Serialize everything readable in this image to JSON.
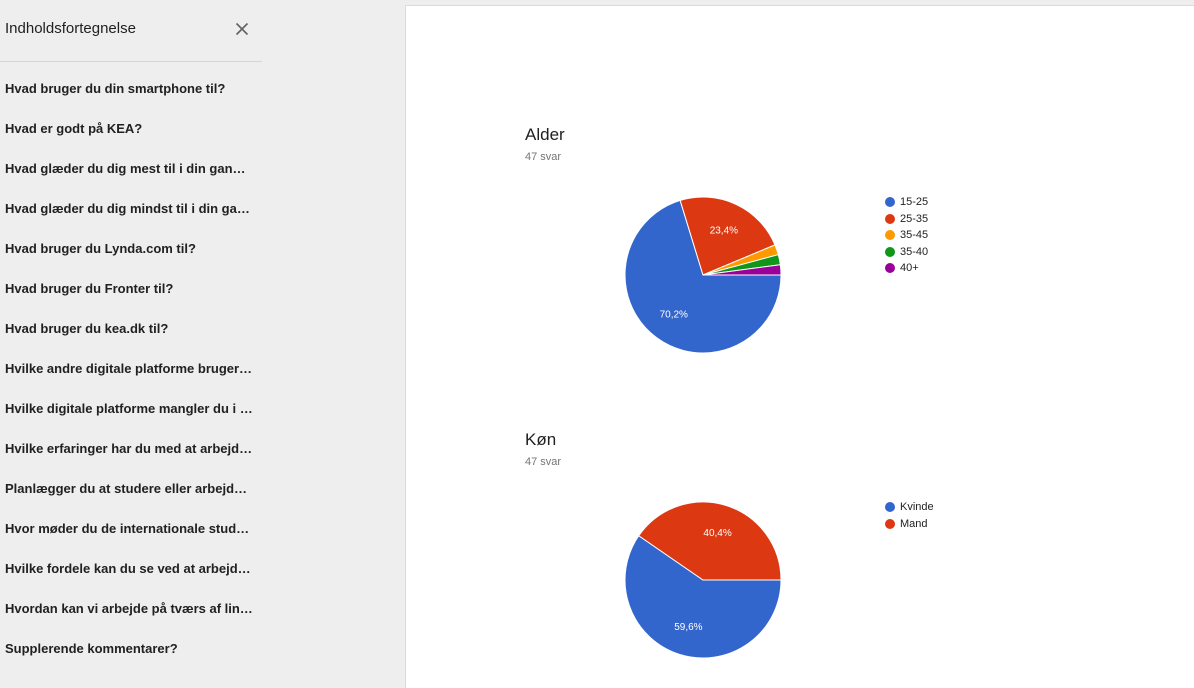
{
  "sidebar": {
    "title": "Indholdsfortegnelse",
    "close_icon": "close-icon",
    "items": [
      {
        "label": "Hvad bruger du din smartphone til?"
      },
      {
        "label": "Hvad er godt på KEA?"
      },
      {
        "label": "Hvad glæder du dig mest til i din gan…"
      },
      {
        "label": "Hvad glæder du dig mindst til i din ga…"
      },
      {
        "label": "Hvad bruger du Lynda.com til?"
      },
      {
        "label": "Hvad bruger du Fronter til?"
      },
      {
        "label": "Hvad bruger du kea.dk til?"
      },
      {
        "label": "Hvilke andre digitale platforme bruger…"
      },
      {
        "label": "Hvilke digitale platforme mangler du i …"
      },
      {
        "label": "Hvilke erfaringer har du med at arbejd…"
      },
      {
        "label": "Planlægger du at studere eller arbejd…"
      },
      {
        "label": "Hvor møder du de internationale stud…"
      },
      {
        "label": "Hvilke fordele kan du se ved at arbejd…"
      },
      {
        "label": "Hvordan kan vi arbejde på tværs af lin…"
      },
      {
        "label": "Supplerende kommentarer?"
      }
    ]
  },
  "cards": [
    {
      "title": "Alder",
      "subtitle": "47 svar"
    },
    {
      "title": "Køn",
      "subtitle": "47 svar"
    }
  ],
  "chart_data": [
    {
      "type": "pie",
      "title": "Alder",
      "categories": [
        "15-25",
        "25-35",
        "35-45",
        "35-40",
        "40+"
      ],
      "values": [
        70.2,
        23.4,
        2.1,
        2.1,
        2.1
      ],
      "labels": [
        "70,2%",
        "23,4%",
        "",
        "",
        ""
      ],
      "colors": [
        "#3366cc",
        "#dc3912",
        "#ff9900",
        "#109618",
        "#990099"
      ],
      "legend_position": "right"
    },
    {
      "type": "pie",
      "title": "Køn",
      "categories": [
        "Kvinde",
        "Mand"
      ],
      "values": [
        59.6,
        40.4
      ],
      "labels": [
        "59,6%",
        "40,4%"
      ],
      "colors": [
        "#3366cc",
        "#dc3912"
      ],
      "legend_position": "right"
    }
  ]
}
